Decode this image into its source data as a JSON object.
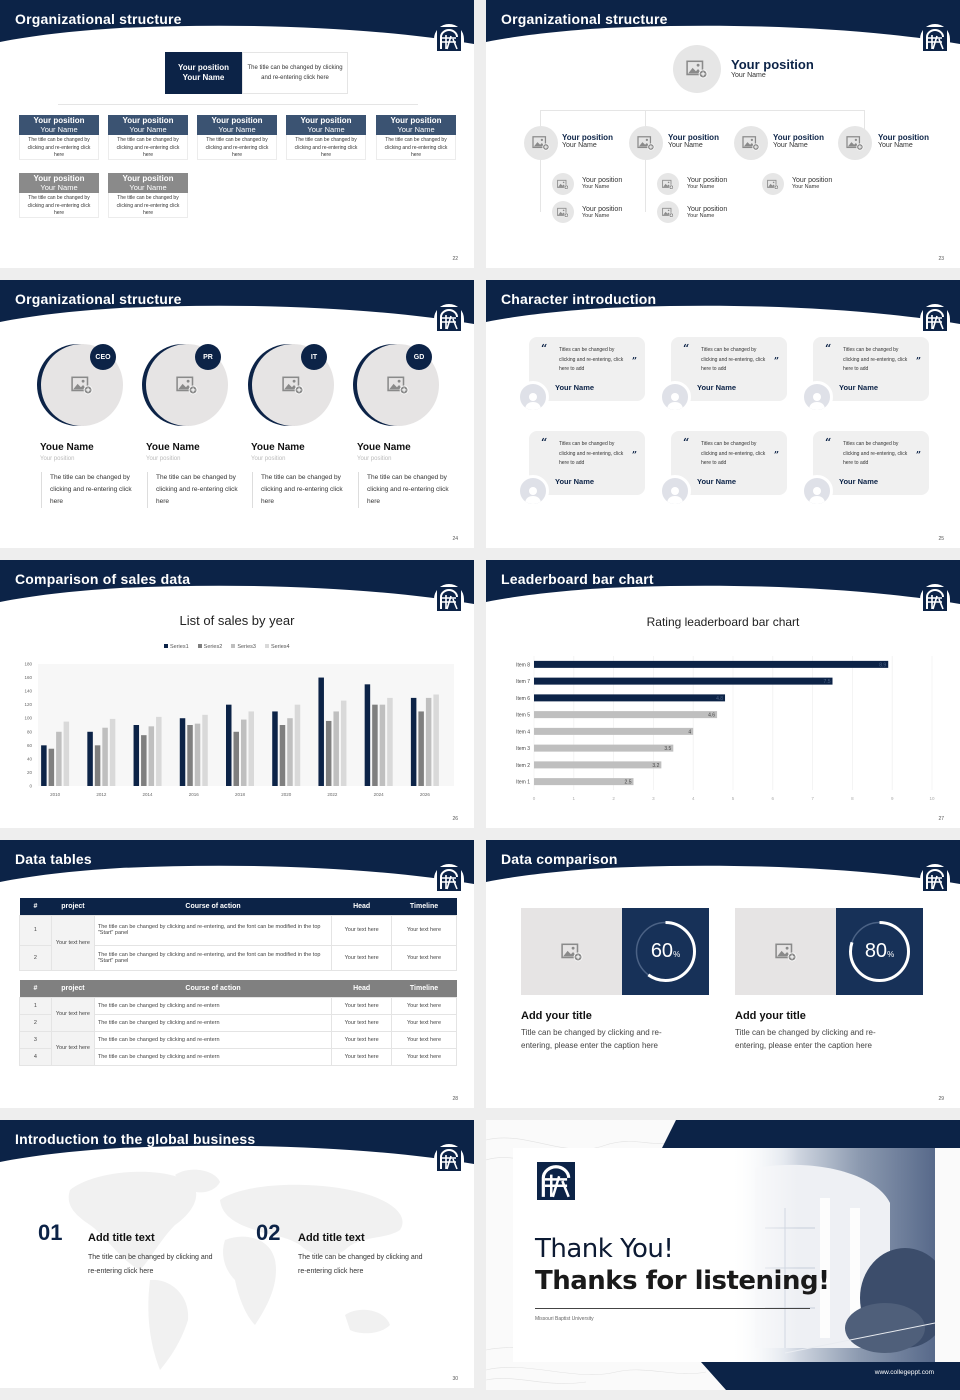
{
  "theme": {
    "navy": "#0c2347",
    "navy_mid": "#173158",
    "slate": "#3b5372",
    "gray": "#888888",
    "light_gray": "#e6e4e4"
  },
  "slides": {
    "s22": {
      "title": "Organizational structure",
      "page": "22",
      "top": {
        "position": "Your position",
        "name": "Your Name",
        "desc": "The title can be changed by clicking and re-entering click here"
      },
      "cards": [
        {
          "position": "Your position",
          "name": "Your Name",
          "desc": "The title can be changed by clicking and re-entering click here"
        },
        {
          "position": "Your position",
          "name": "Your Name",
          "desc": "The title can be changed by clicking and re-entering click here"
        },
        {
          "position": "Your position",
          "name": "Your Name",
          "desc": "The title can be changed by clicking and re-entering click here"
        },
        {
          "position": "Your position",
          "name": "Your Name",
          "desc": "The title can be changed by clicking and re-entering click here"
        },
        {
          "position": "Your position",
          "name": "Your Name",
          "desc": "The title can be changed by clicking and re-entering click here"
        },
        {
          "position": "Your position",
          "name": "Your Name",
          "desc": "The title can be changed by clicking and re-entering click here"
        },
        {
          "position": "Your position",
          "name": "Your Name",
          "desc": "The title can be changed by clicking and re-entering click here"
        }
      ]
    },
    "s23": {
      "title": "Organizational structure",
      "page": "23",
      "top": {
        "position": "Your position",
        "name": "Your Name"
      },
      "level2": [
        {
          "position": "Your position",
          "name": "Your Name"
        },
        {
          "position": "Your position",
          "name": "Your Name"
        },
        {
          "position": "Your position",
          "name": "Your Name"
        },
        {
          "position": "Your position",
          "name": "Your Name"
        }
      ],
      "level3": [
        {
          "position": "Your position",
          "name": "Your Name"
        },
        {
          "position": "Your position",
          "name": "Your Name"
        },
        {
          "position": "Your position",
          "name": "Your Name"
        },
        {
          "position": "Your position",
          "name": "Your Name"
        },
        {
          "position": "Your position",
          "name": "Your Name"
        }
      ]
    },
    "s24": {
      "title": "Organizational structure",
      "page": "24",
      "people": [
        {
          "badge": "CEO",
          "name": "Youe Name",
          "position": "Your position",
          "desc": "The title can be changed by clicking and re-entering click here"
        },
        {
          "badge": "PR",
          "name": "Youe Name",
          "position": "Your position",
          "desc": "The title can be changed by clicking and re-entering click here"
        },
        {
          "badge": "IT",
          "name": "Youe Name",
          "position": "Your position",
          "desc": "The title can be changed by clicking and re-entering click here"
        },
        {
          "badge": "GD",
          "name": "Youe Name",
          "position": "Your position",
          "desc": "The title can be changed by clicking and re-entering click here"
        }
      ]
    },
    "s25": {
      "title": "Character introduction",
      "page": "25",
      "quotes": [
        {
          "text": "Titles can be changed by clicking and re-entering, click here to add",
          "name": "Your Name"
        },
        {
          "text": "Titles can be changed by clicking and re-entering, click here to add",
          "name": "Your Name"
        },
        {
          "text": "Titles can be changed by clicking and re-entering, click here to add",
          "name": "Your Name"
        },
        {
          "text": "Titles can be changed by clicking and re-entering, click here to add",
          "name": "Your Name"
        },
        {
          "text": "Titles can be changed by clicking and re-entering, click here to add",
          "name": "Your Name"
        },
        {
          "text": "Titles can be changed by clicking and re-entering, click here to add",
          "name": "Your Name"
        }
      ],
      "open_quote": "“",
      "close_quote": "”"
    },
    "s26": {
      "title": "Comparison of sales data",
      "page": "26"
    },
    "s27": {
      "title": "Leaderboard bar chart",
      "page": "27"
    },
    "s28": {
      "title": "Data tables",
      "page": "28",
      "headers": [
        "#",
        "project",
        "Course of action",
        "Head",
        "Timeline"
      ],
      "table1": {
        "project": "Your text here",
        "rows": [
          {
            "num": "1",
            "action": "The title can be changed by clicking and re-entering, and the font can be modified in the top \"Start\" panel",
            "head": "Your text here",
            "timeline": "Your text here"
          },
          {
            "num": "2",
            "action": "The title can be changed by clicking and re-entering, and the font can be modified in the top \"Start\" panel",
            "head": "Your text here",
            "timeline": "Your text here"
          }
        ]
      },
      "table2": {
        "project_a": "Your text here",
        "project_b": "Your text here",
        "rows": [
          {
            "num": "1",
            "action": "The title can be changed by clicking and re-entern",
            "head": "Your text here",
            "timeline": "Your text here"
          },
          {
            "num": "2",
            "action": "The title can be changed by clicking and re-entern",
            "head": "Your text here",
            "timeline": "Your text here"
          },
          {
            "num": "3",
            "action": "The title can be changed by clicking and re-entern",
            "head": "Your text here",
            "timeline": "Your text here"
          },
          {
            "num": "4",
            "action": "The title can be changed by clicking and re-entern",
            "head": "Your text here",
            "timeline": "Your text here"
          }
        ]
      }
    },
    "s29": {
      "title": "Data comparison",
      "page": "29",
      "items": [
        {
          "value": "60",
          "unit": "%",
          "percent": 60,
          "title": "Add your title",
          "desc": "Title can be changed by clicking and re-entering, please enter the caption here"
        },
        {
          "value": "80",
          "unit": "%",
          "percent": 80,
          "title": "Add your title",
          "desc": "Title can be changed by clicking and re-entering, please enter the caption here"
        }
      ]
    },
    "s30": {
      "title": "Introduction to the global business",
      "page": "30",
      "items": [
        {
          "num": "01",
          "title": "Add title text",
          "desc": "The title can be changed by clicking and re-entering click here"
        },
        {
          "num": "02",
          "title": "Add title text",
          "desc": "The title can be changed by clicking and re-entering click here"
        }
      ]
    },
    "s31": {
      "line1": "Thank You!",
      "line2": "Thanks for listening!",
      "university": "Missouri Baptist University",
      "url": "www.collegeppt.com"
    }
  },
  "chart_data": [
    {
      "type": "bar",
      "title": "List of sales by year",
      "categories": [
        "2010",
        "2012",
        "2014",
        "2016",
        "2018",
        "2020",
        "2022",
        "2024",
        "2026"
      ],
      "series": [
        {
          "name": "Series1",
          "color": "#0c2347",
          "values": [
            60,
            80,
            90,
            100,
            120,
            110,
            160,
            150,
            130
          ]
        },
        {
          "name": "Series2",
          "color": "#7f7f7f",
          "values": [
            55,
            60,
            75,
            90,
            80,
            90,
            96,
            120,
            110
          ]
        },
        {
          "name": "Series3",
          "color": "#bfbfbf",
          "values": [
            80,
            86,
            88,
            92,
            98,
            100,
            110,
            120,
            130
          ]
        },
        {
          "name": "Series4",
          "color": "#d9d9d9",
          "values": [
            95,
            99,
            102,
            105,
            110,
            120,
            126,
            130,
            135
          ]
        }
      ],
      "yticks": [
        "0",
        "20",
        "40",
        "60",
        "80",
        "100",
        "120",
        "140",
        "160",
        "180"
      ],
      "ylim": [
        0,
        180
      ],
      "xlabel": "",
      "ylabel": "",
      "legend_position": "top",
      "grid": false
    },
    {
      "type": "bar",
      "orientation": "horizontal",
      "title": "Rating leaderboard bar chart",
      "categories": [
        "Item 8",
        "Item 7",
        "Item 6",
        "Item 5",
        "Item 4",
        "Item 3",
        "Item 2",
        "Item 1"
      ],
      "values": [
        8.9,
        7.5,
        4.8,
        4.6,
        4,
        3.5,
        3.2,
        2.5
      ],
      "labels": [
        "8.9",
        "7.5",
        "4.8",
        "4.6",
        "4",
        "3.5",
        "3.2",
        "2.5"
      ],
      "highlight_top": 3,
      "xticks": [
        "0",
        "1",
        "2",
        "3",
        "4",
        "5",
        "6",
        "7",
        "8",
        "9",
        "10"
      ],
      "xlim": [
        0,
        10
      ],
      "grid": true
    }
  ]
}
